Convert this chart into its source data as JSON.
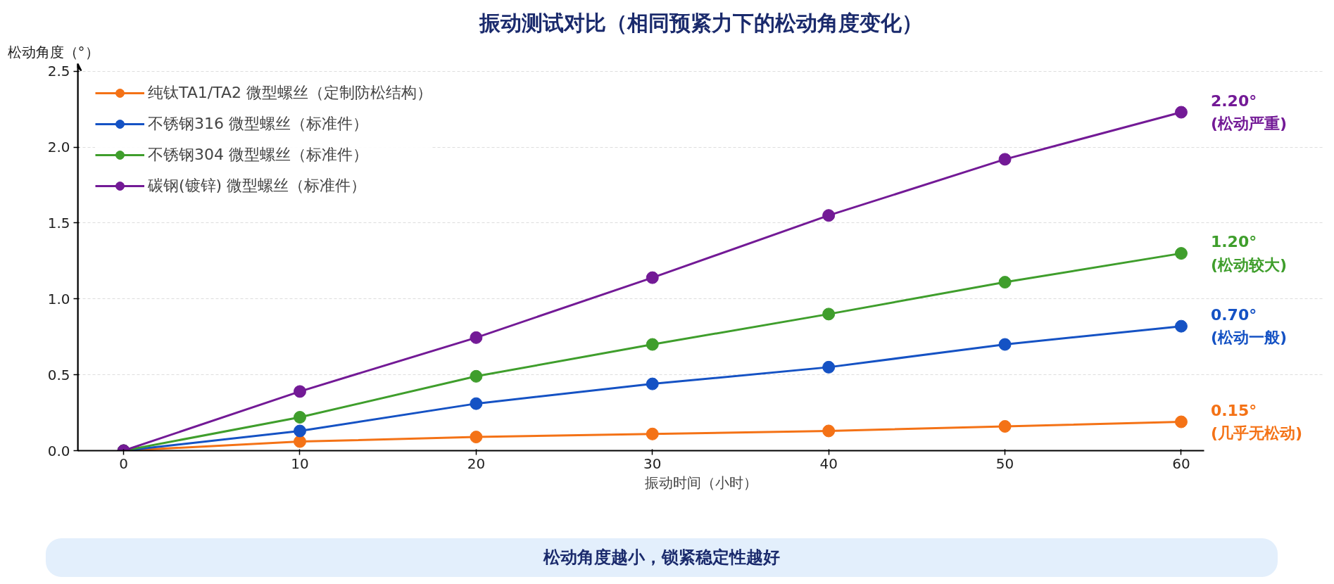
{
  "chart_data": {
    "type": "line",
    "title": "振动测试对比（相同预紧力下的松动角度变化）",
    "xlabel": "振动时间（小时）",
    "ylabel": "松动角度（°）",
    "x": [
      0,
      10,
      20,
      30,
      40,
      50,
      60
    ],
    "series": [
      {
        "name": "纯钛TA1/TA2 微型螺丝（定制防松结构）",
        "color": "#f47216",
        "values": [
          0,
          0.06,
          0.09,
          0.11,
          0.13,
          0.16,
          0.19
        ]
      },
      {
        "name": "不锈钢316 微型螺丝（标准件）",
        "color": "#1552c4",
        "values": [
          0,
          0.13,
          0.31,
          0.44,
          0.55,
          0.7,
          0.82
        ]
      },
      {
        "name": "不锈钢304 微型螺丝（标准件）",
        "color": "#3f9e2c",
        "values": [
          0,
          0.22,
          0.49,
          0.7,
          0.9,
          1.11,
          1.3
        ]
      },
      {
        "name": "碳钢(镀锌) 微型螺丝（标准件）",
        "color": "#731a96",
        "values": [
          0,
          0.39,
          0.745,
          1.14,
          1.55,
          1.92,
          2.23
        ]
      }
    ],
    "xlim": [
      -2.6,
      61.3
    ],
    "ylim": [
      0,
      2.55
    ],
    "xticks": [
      0,
      10,
      20,
      30,
      40,
      50,
      60
    ],
    "yticks": [
      {
        "value": 0,
        "label": "0.0"
      },
      {
        "value": 0.5,
        "label": "0.5"
      },
      {
        "value": 1,
        "label": "1.0"
      },
      {
        "value": 1.5,
        "label": "1.5"
      },
      {
        "value": 2,
        "label": "2.0"
      },
      {
        "value": 2.5,
        "label": "2.5"
      }
    ],
    "grid": "y",
    "legend": "top left",
    "marker": "circle",
    "line_style": "solid",
    "annotations": [
      "2.20°\n(松动严重)",
      "1.20°\n(松动较大)",
      "0.70°\n(松动一般)",
      "0.15°\n(几乎无松动)",
      "松动角度越小，锁紧稳定性越好"
    ]
  }
}
